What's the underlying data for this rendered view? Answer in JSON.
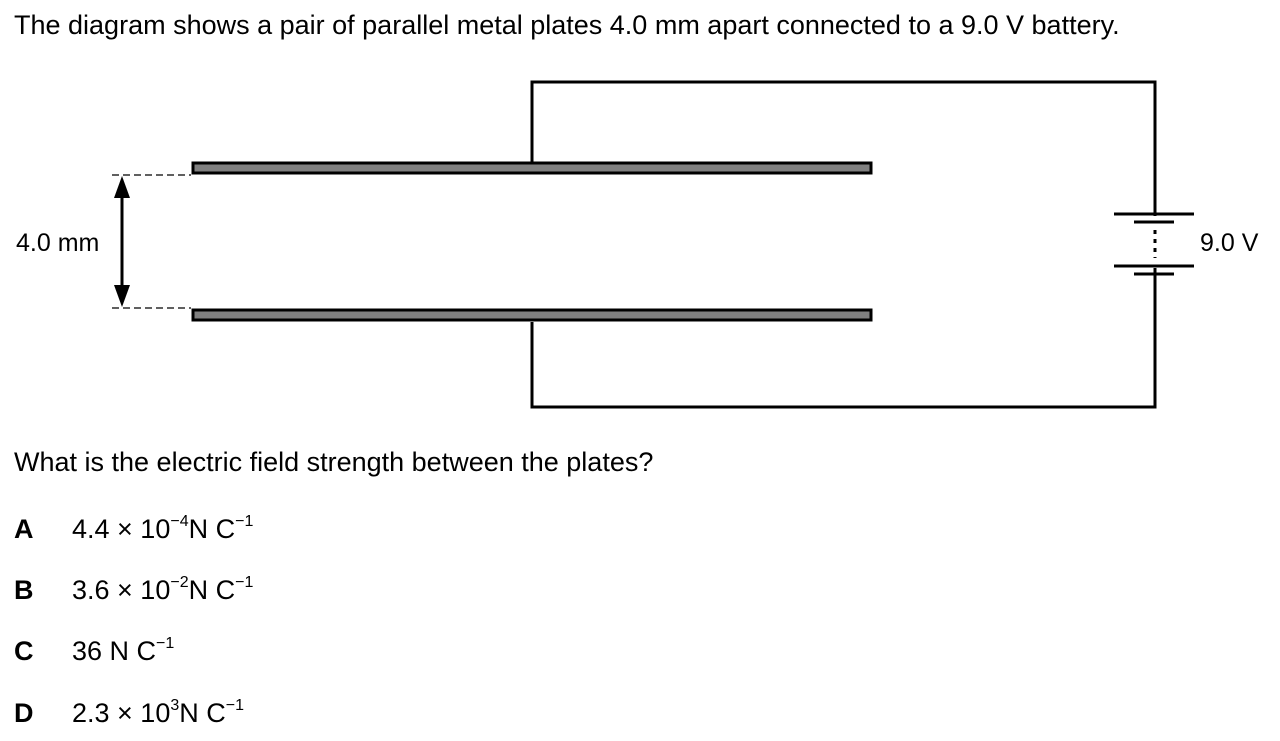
{
  "intro_text": "The diagram shows a pair of parallel metal plates 4.0 mm apart connected to a 9.0 V battery.",
  "diagram": {
    "separation_label": "4.0 mm",
    "battery_label": "9.0 V"
  },
  "question_text": "What is the electric field strength between the plates?",
  "options": [
    {
      "letter": "A",
      "mantissa": "4.4 × 10",
      "exponent": "−4",
      "unit": "N C",
      "unit_exponent": "−1"
    },
    {
      "letter": "B",
      "mantissa": "3.6 × 10",
      "exponent": "−2",
      "unit": "N C",
      "unit_exponent": "−1"
    },
    {
      "letter": "C",
      "mantissa": "36",
      "exponent": "",
      "unit": " N C",
      "unit_exponent": "−1"
    },
    {
      "letter": "D",
      "mantissa": "2.3 × 10",
      "exponent": "3",
      "unit": "N C",
      "unit_exponent": "−1"
    }
  ]
}
